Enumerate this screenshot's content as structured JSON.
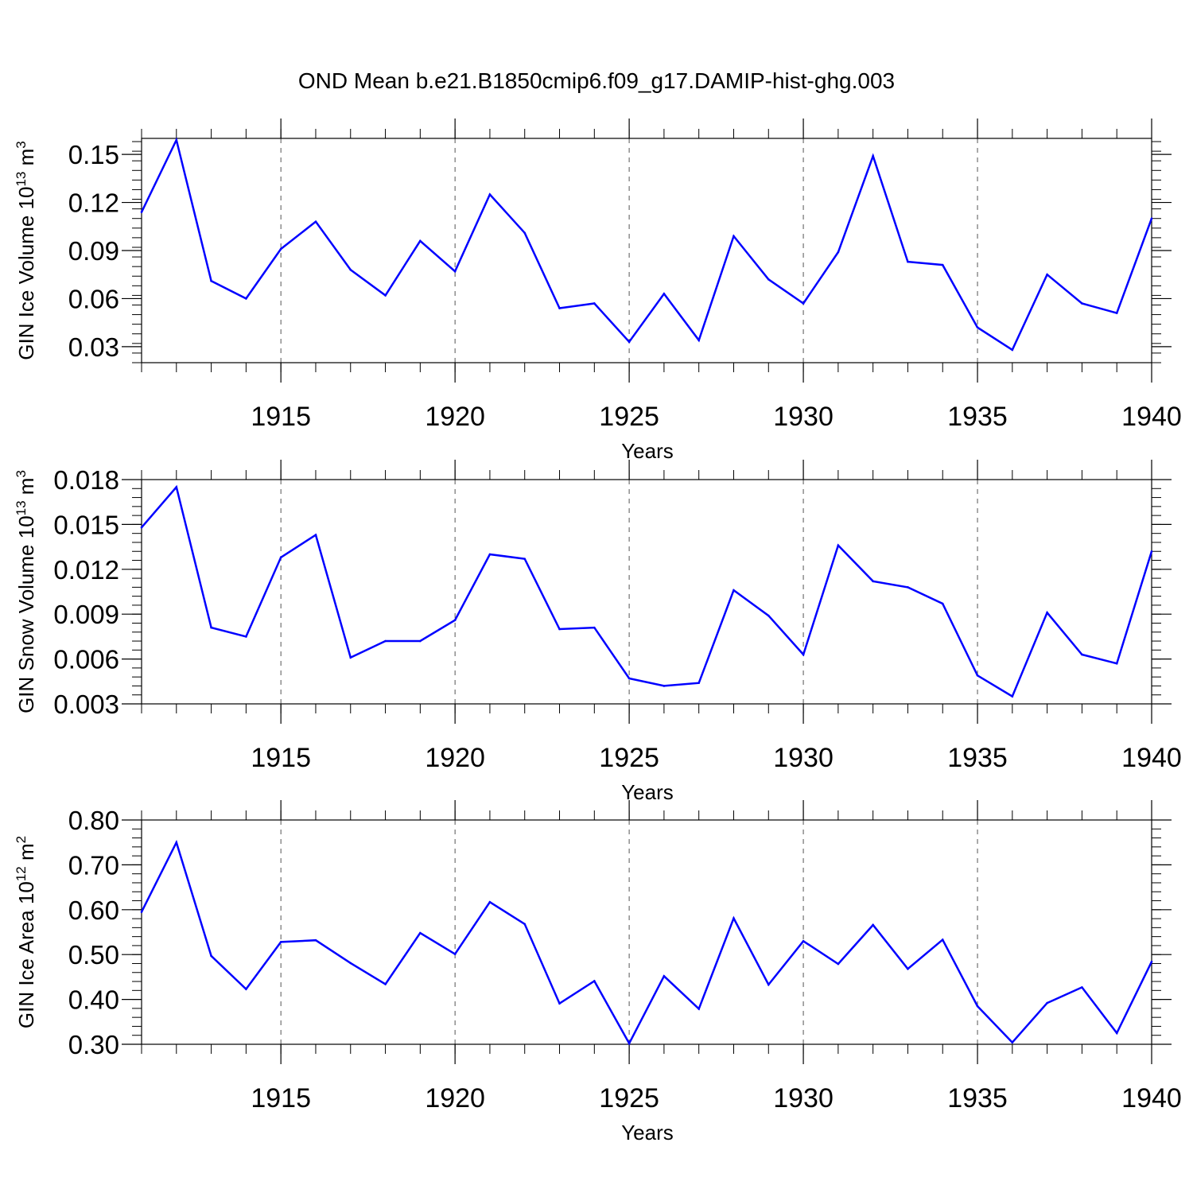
{
  "title": "OND Mean b.e21.B1850cmip6.f09_g17.DAMIP-hist-ghg.003",
  "colors": {
    "line": "#0000ff",
    "axis": "#000000",
    "grid": "#555555"
  },
  "chart_data": [
    {
      "type": "line",
      "xlabel": "Years",
      "ylabel_text": "GIN Ice Volume 10",
      "ylabel_exp": "13",
      "ylabel_unit": " m",
      "ylabel_unit_exp": "3",
      "xlim": [
        1911,
        1940
      ],
      "ylim": [
        0.02,
        0.16
      ],
      "yticks": [
        0.03,
        0.06,
        0.09,
        0.12,
        0.15
      ],
      "ytick_labels": [
        "0.03",
        "0.06",
        "0.09",
        "0.12",
        "0.15"
      ],
      "xticks": [
        1915,
        1920,
        1925,
        1930,
        1935,
        1940
      ],
      "xtick_labels": [
        "1915",
        "1920",
        "1925",
        "1930",
        "1935",
        "1940"
      ],
      "grid": "vertical dashed at major x ticks",
      "x": [
        1911,
        1912,
        1913,
        1914,
        1915,
        1916,
        1917,
        1918,
        1919,
        1920,
        1921,
        1922,
        1923,
        1924,
        1925,
        1926,
        1927,
        1928,
        1929,
        1930,
        1931,
        1932,
        1933,
        1934,
        1935,
        1936,
        1937,
        1938,
        1939,
        1940
      ],
      "values": [
        0.114,
        0.159,
        0.071,
        0.06,
        0.091,
        0.108,
        0.078,
        0.062,
        0.096,
        0.077,
        0.125,
        0.101,
        0.054,
        0.057,
        0.033,
        0.063,
        0.034,
        0.099,
        0.072,
        0.057,
        0.089,
        0.149,
        0.083,
        0.081,
        0.042,
        0.028,
        0.075,
        0.057,
        0.051,
        0.11
      ]
    },
    {
      "type": "line",
      "xlabel": "Years",
      "ylabel_text": "GIN Snow Volume 10",
      "ylabel_exp": "13",
      "ylabel_unit": " m",
      "ylabel_unit_exp": "3",
      "xlim": [
        1911,
        1940
      ],
      "ylim": [
        0.003,
        0.018
      ],
      "yticks": [
        0.003,
        0.006,
        0.009,
        0.012,
        0.015,
        0.018
      ],
      "ytick_labels": [
        "0.003",
        "0.006",
        "0.009",
        "0.012",
        "0.015",
        "0.018"
      ],
      "xticks": [
        1915,
        1920,
        1925,
        1930,
        1935,
        1940
      ],
      "xtick_labels": [
        "1915",
        "1920",
        "1925",
        "1930",
        "1935",
        "1940"
      ],
      "grid": "vertical dashed at major x ticks",
      "x": [
        1911,
        1912,
        1913,
        1914,
        1915,
        1916,
        1917,
        1918,
        1919,
        1920,
        1921,
        1922,
        1923,
        1924,
        1925,
        1926,
        1927,
        1928,
        1929,
        1930,
        1931,
        1932,
        1933,
        1934,
        1935,
        1936,
        1937,
        1938,
        1939,
        1940
      ],
      "values": [
        0.0148,
        0.0175,
        0.0081,
        0.0075,
        0.0128,
        0.0143,
        0.0061,
        0.0072,
        0.0072,
        0.0086,
        0.013,
        0.0127,
        0.008,
        0.0081,
        0.0047,
        0.0042,
        0.0044,
        0.0106,
        0.0089,
        0.0063,
        0.0136,
        0.0112,
        0.0108,
        0.0097,
        0.0049,
        0.0035,
        0.0091,
        0.0063,
        0.0057,
        0.0132
      ]
    },
    {
      "type": "line",
      "xlabel": "Years",
      "ylabel_text": "GIN Ice Area 10",
      "ylabel_exp": "12",
      "ylabel_unit": " m",
      "ylabel_unit_exp": "2",
      "xlim": [
        1911,
        1940
      ],
      "ylim": [
        0.3,
        0.8
      ],
      "yticks": [
        0.3,
        0.4,
        0.5,
        0.6,
        0.7,
        0.8
      ],
      "ytick_labels": [
        "0.30",
        "0.40",
        "0.50",
        "0.60",
        "0.70",
        "0.80"
      ],
      "xticks": [
        1915,
        1920,
        1925,
        1930,
        1935,
        1940
      ],
      "xtick_labels": [
        "1915",
        "1920",
        "1925",
        "1930",
        "1935",
        "1940"
      ],
      "grid": "vertical dashed at major x ticks",
      "x": [
        1911,
        1912,
        1913,
        1914,
        1915,
        1916,
        1917,
        1918,
        1919,
        1920,
        1921,
        1922,
        1923,
        1924,
        1925,
        1926,
        1927,
        1928,
        1929,
        1930,
        1931,
        1932,
        1933,
        1934,
        1935,
        1936,
        1937,
        1938,
        1939,
        1940
      ],
      "values": [
        0.595,
        0.75,
        0.497,
        0.423,
        0.528,
        0.532,
        0.481,
        0.434,
        0.548,
        0.501,
        0.617,
        0.568,
        0.391,
        0.441,
        0.302,
        0.452,
        0.379,
        0.581,
        0.433,
        0.53,
        0.479,
        0.566,
        0.468,
        0.533,
        0.385,
        0.304,
        0.392,
        0.427,
        0.325,
        0.484
      ]
    }
  ]
}
